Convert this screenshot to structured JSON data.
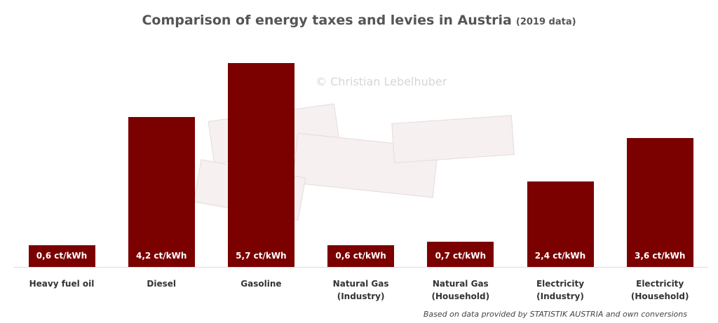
{
  "chart_data": {
    "type": "bar",
    "title": "Comparison of energy taxes and levies in Austria",
    "subtitle": "(2019 data)",
    "categories": [
      "Heavy fuel oil",
      "Diesel",
      "Gasoline",
      "Natural Gas\n(Industry)",
      "Natural Gas\n(Household)",
      "Electricity\n(Industry)",
      "Electricity\n(Household)"
    ],
    "values": [
      0.6,
      4.2,
      5.7,
      0.6,
      0.7,
      2.4,
      3.6
    ],
    "value_labels": [
      "0,6 ct/kWh",
      "4,2 ct/kWh",
      "5,7 ct/kWh",
      "0,6 ct/kWh",
      "0,7 ct/kWh",
      "2,4 ct/kWh",
      "3,6 ct/kWh"
    ],
    "color": "#7b0000",
    "annotation": "© Christian Lebelhuber",
    "source": "Based on data provided by STATISTIK AUSTRIA and own conversions"
  }
}
